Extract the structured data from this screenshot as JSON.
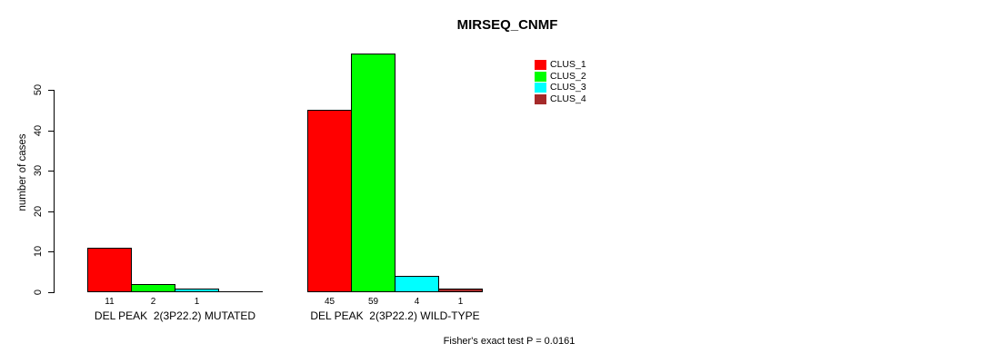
{
  "chart_data": {
    "type": "bar",
    "title": "MIRSEQ_CNMF",
    "ylabel": "number of cases",
    "xlabel": "",
    "yticks": [
      0,
      10,
      20,
      30,
      40,
      50
    ],
    "ylim": [
      0,
      59
    ],
    "grid": false,
    "legend_position": "top-right",
    "series": [
      {
        "name": "CLUS_1",
        "color": "#FF0000"
      },
      {
        "name": "CLUS_2",
        "color": "#00FF00"
      },
      {
        "name": "CLUS_3",
        "color": "#00FFFF"
      },
      {
        "name": "CLUS_4",
        "color": "#A52A2A"
      }
    ],
    "groups": [
      {
        "label": "DEL PEAK  2(3P22.2) MUTATED",
        "values": [
          11,
          2,
          1,
          0
        ]
      },
      {
        "label": "DEL PEAK  2(3P22.2) WILD-TYPE",
        "values": [
          45,
          59,
          4,
          1
        ]
      }
    ],
    "bar_value_labels_shown_when": "value > 0",
    "annotation": "Fisher's exact test P = 0.0161"
  }
}
